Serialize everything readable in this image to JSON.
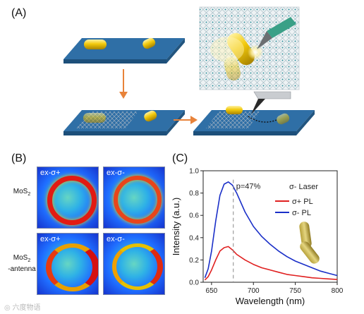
{
  "panels": {
    "a": "(A)",
    "b": "(B)",
    "c": "(C)"
  },
  "panel_b": {
    "row_labels": [
      {
        "lines": [
          "MoS",
          "2"
        ]
      },
      {
        "lines": [
          "MoS",
          "2",
          "-antenna"
        ]
      }
    ],
    "maps": [
      {
        "label": "ex-σ+"
      },
      {
        "label": "ex-σ-"
      },
      {
        "label": "ex-σ+"
      },
      {
        "label": "ex-σ-"
      }
    ]
  },
  "chart_data": {
    "type": "line",
    "xlabel": "Wavelength (nm)",
    "ylabel": "Intensity (a.u.)",
    "xlim": [
      640,
      800
    ],
    "ylim": [
      0.0,
      1.0
    ],
    "xticks": [
      650,
      700,
      750,
      800
    ],
    "yticks": [
      0.0,
      0.2,
      0.4,
      0.6,
      0.8,
      1.0
    ],
    "yticklabels": [
      "0.0",
      "0.2",
      "0.4",
      "0.6",
      "0.8",
      "1.0"
    ],
    "legend_title": "σ- Laser",
    "legend_placement": "top-right",
    "annotation": "p=47%",
    "marker_line_x": 676,
    "series": [
      {
        "name": "σ+ PL",
        "color": "#e02020",
        "x": [
          642,
          646,
          650,
          655,
          660,
          665,
          670,
          675,
          680,
          690,
          700,
          710,
          720,
          730,
          740,
          750,
          760,
          770,
          780,
          790,
          800
        ],
        "y": [
          0.02,
          0.05,
          0.11,
          0.2,
          0.28,
          0.31,
          0.32,
          0.29,
          0.25,
          0.2,
          0.16,
          0.13,
          0.11,
          0.09,
          0.07,
          0.06,
          0.05,
          0.04,
          0.035,
          0.03,
          0.025
        ]
      },
      {
        "name": "σ- PL",
        "color": "#1a2fc8",
        "x": [
          642,
          646,
          650,
          655,
          660,
          665,
          670,
          675,
          680,
          690,
          700,
          710,
          720,
          730,
          740,
          750,
          760,
          770,
          780,
          790,
          800
        ],
        "y": [
          0.04,
          0.12,
          0.28,
          0.55,
          0.78,
          0.88,
          0.9,
          0.87,
          0.8,
          0.63,
          0.5,
          0.41,
          0.34,
          0.28,
          0.23,
          0.19,
          0.16,
          0.13,
          0.1,
          0.08,
          0.06
        ]
      }
    ]
  },
  "watermark": "六度物语"
}
